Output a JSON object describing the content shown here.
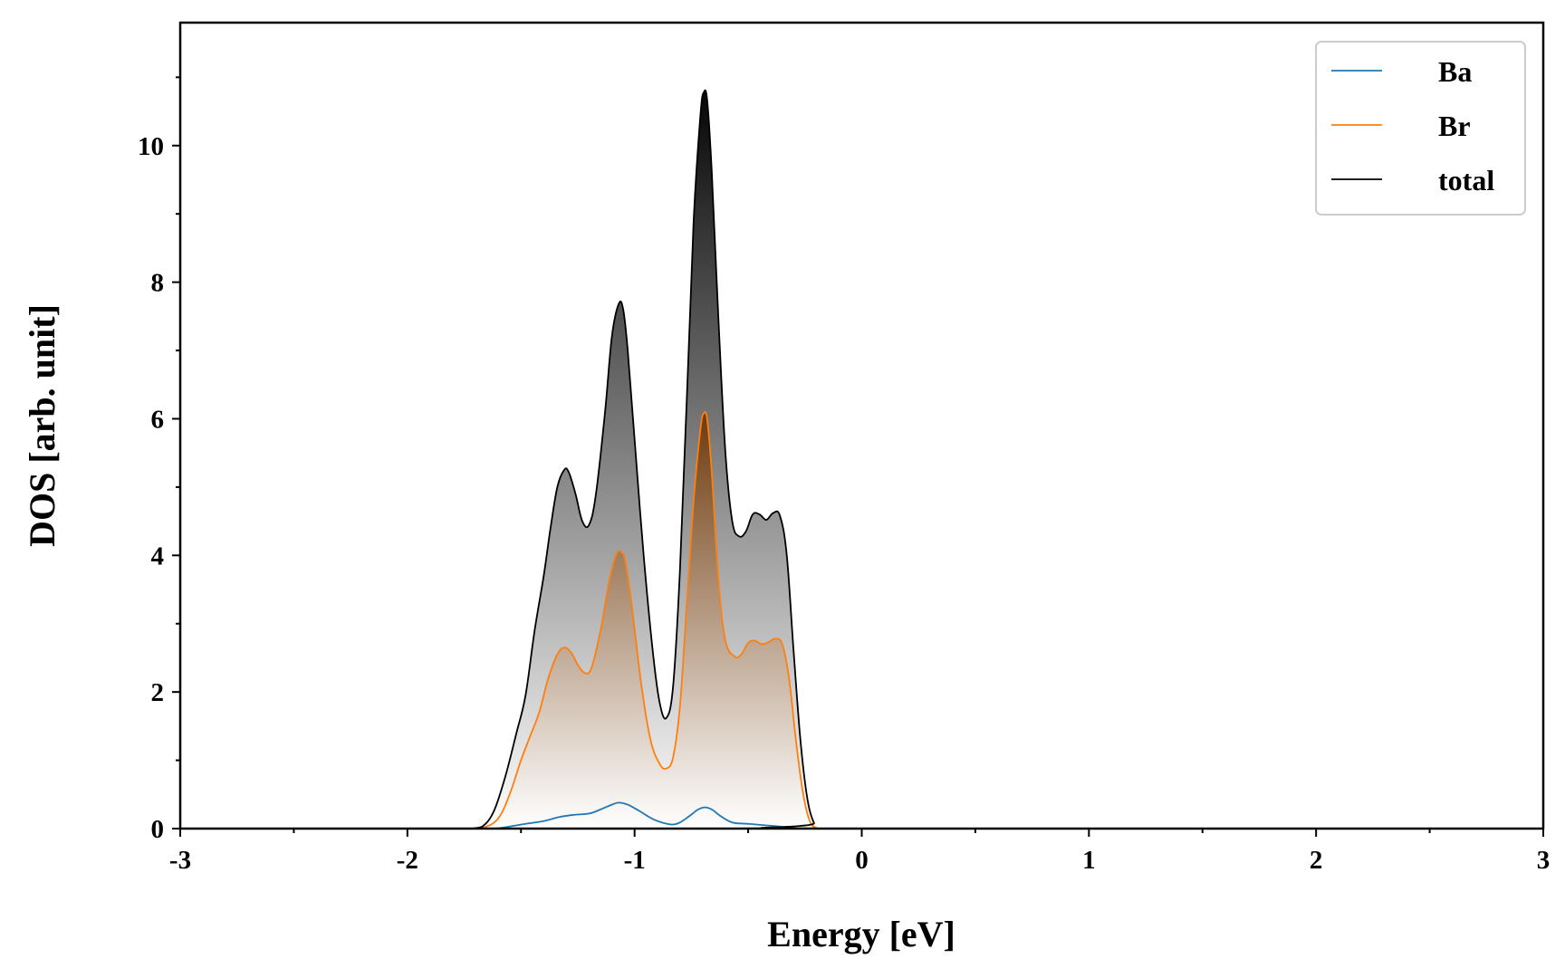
{
  "chart_data": {
    "type": "area",
    "title": "",
    "xlabel": "Energy [eV]",
    "ylabel": "DOS [arb. unit]",
    "xlim": [
      -3,
      3
    ],
    "ylim": [
      0,
      11.8
    ],
    "x_ticks": [
      "-3",
      "-2",
      "-1",
      "0",
      "1",
      "2",
      "3"
    ],
    "y_ticks": [
      "0",
      "2",
      "4",
      "6",
      "8",
      "10"
    ],
    "grid": false,
    "legend_position": "top-right",
    "series": [
      {
        "name": "Ba",
        "color": "#1f77b4",
        "points": [
          [
            -1.7,
            0
          ],
          [
            -1.62,
            0
          ],
          [
            -1.55,
            0.03
          ],
          [
            -1.48,
            0.07
          ],
          [
            -1.4,
            0.11
          ],
          [
            -1.33,
            0.17
          ],
          [
            -1.27,
            0.2
          ],
          [
            -1.2,
            0.22
          ],
          [
            -1.15,
            0.28
          ],
          [
            -1.1,
            0.35
          ],
          [
            -1.07,
            0.38
          ],
          [
            -1.03,
            0.35
          ],
          [
            -0.98,
            0.26
          ],
          [
            -0.92,
            0.14
          ],
          [
            -0.87,
            0.08
          ],
          [
            -0.83,
            0.06
          ],
          [
            -0.8,
            0.09
          ],
          [
            -0.76,
            0.18
          ],
          [
            -0.72,
            0.28
          ],
          [
            -0.69,
            0.31
          ],
          [
            -0.66,
            0.28
          ],
          [
            -0.62,
            0.18
          ],
          [
            -0.57,
            0.09
          ],
          [
            -0.5,
            0.07
          ],
          [
            -0.43,
            0.05
          ],
          [
            -0.36,
            0.03
          ],
          [
            -0.3,
            0.01
          ],
          [
            -0.26,
            0
          ],
          [
            3.0,
            0
          ]
        ]
      },
      {
        "name": "Br",
        "color": "#ff7f0e",
        "points": [
          [
            -1.72,
            0
          ],
          [
            -1.66,
            0.02
          ],
          [
            -1.6,
            0.15
          ],
          [
            -1.55,
            0.5
          ],
          [
            -1.5,
            1.0
          ],
          [
            -1.46,
            1.35
          ],
          [
            -1.42,
            1.7
          ],
          [
            -1.38,
            2.2
          ],
          [
            -1.34,
            2.55
          ],
          [
            -1.31,
            2.65
          ],
          [
            -1.28,
            2.58
          ],
          [
            -1.25,
            2.4
          ],
          [
            -1.22,
            2.28
          ],
          [
            -1.19,
            2.35
          ],
          [
            -1.15,
            2.9
          ],
          [
            -1.11,
            3.65
          ],
          [
            -1.08,
            4.02
          ],
          [
            -1.06,
            4.05
          ],
          [
            -1.04,
            3.9
          ],
          [
            -1.01,
            3.2
          ],
          [
            -0.97,
            2.1
          ],
          [
            -0.93,
            1.3
          ],
          [
            -0.89,
            0.95
          ],
          [
            -0.86,
            0.88
          ],
          [
            -0.83,
            1.05
          ],
          [
            -0.8,
            1.8
          ],
          [
            -0.77,
            3.3
          ],
          [
            -0.74,
            4.8
          ],
          [
            -0.71,
            5.85
          ],
          [
            -0.695,
            6.08
          ],
          [
            -0.68,
            5.98
          ],
          [
            -0.66,
            5.2
          ],
          [
            -0.63,
            3.6
          ],
          [
            -0.6,
            2.75
          ],
          [
            -0.56,
            2.52
          ],
          [
            -0.53,
            2.55
          ],
          [
            -0.5,
            2.72
          ],
          [
            -0.47,
            2.75
          ],
          [
            -0.44,
            2.7
          ],
          [
            -0.41,
            2.73
          ],
          [
            -0.38,
            2.78
          ],
          [
            -0.35,
            2.7
          ],
          [
            -0.32,
            2.2
          ],
          [
            -0.29,
            1.3
          ],
          [
            -0.26,
            0.55
          ],
          [
            -0.23,
            0.12
          ],
          [
            -0.2,
            0.01
          ],
          [
            -0.17,
            0
          ],
          [
            3.0,
            0
          ]
        ]
      },
      {
        "name": "total",
        "color": "#000000",
        "points": [
          [
            -1.72,
            0
          ],
          [
            -1.67,
            0.03
          ],
          [
            -1.62,
            0.25
          ],
          [
            -1.57,
            0.75
          ],
          [
            -1.52,
            1.4
          ],
          [
            -1.48,
            1.95
          ],
          [
            -1.44,
            2.9
          ],
          [
            -1.4,
            3.7
          ],
          [
            -1.37,
            4.4
          ],
          [
            -1.34,
            5.0
          ],
          [
            -1.31,
            5.25
          ],
          [
            -1.29,
            5.22
          ],
          [
            -1.26,
            4.9
          ],
          [
            -1.23,
            4.5
          ],
          [
            -1.2,
            4.45
          ],
          [
            -1.17,
            4.9
          ],
          [
            -1.13,
            6.1
          ],
          [
            -1.1,
            7.2
          ],
          [
            -1.07,
            7.68
          ],
          [
            -1.05,
            7.6
          ],
          [
            -1.03,
            7.0
          ],
          [
            -1.0,
            5.7
          ],
          [
            -0.96,
            4.0
          ],
          [
            -0.92,
            2.6
          ],
          [
            -0.89,
            1.85
          ],
          [
            -0.86,
            1.62
          ],
          [
            -0.83,
            2.1
          ],
          [
            -0.8,
            3.8
          ],
          [
            -0.77,
            6.3
          ],
          [
            -0.74,
            8.9
          ],
          [
            -0.71,
            10.45
          ],
          [
            -0.695,
            10.78
          ],
          [
            -0.68,
            10.65
          ],
          [
            -0.66,
            9.6
          ],
          [
            -0.63,
            7.4
          ],
          [
            -0.6,
            5.5
          ],
          [
            -0.57,
            4.5
          ],
          [
            -0.54,
            4.28
          ],
          [
            -0.51,
            4.35
          ],
          [
            -0.48,
            4.6
          ],
          [
            -0.45,
            4.6
          ],
          [
            -0.42,
            4.52
          ],
          [
            -0.39,
            4.62
          ],
          [
            -0.36,
            4.58
          ],
          [
            -0.33,
            4.0
          ],
          [
            -0.3,
            2.6
          ],
          [
            -0.27,
            1.3
          ],
          [
            -0.24,
            0.45
          ],
          [
            -0.21,
            0.08
          ],
          [
            -0.18,
            0
          ],
          [
            3.0,
            0
          ]
        ]
      }
    ]
  }
}
